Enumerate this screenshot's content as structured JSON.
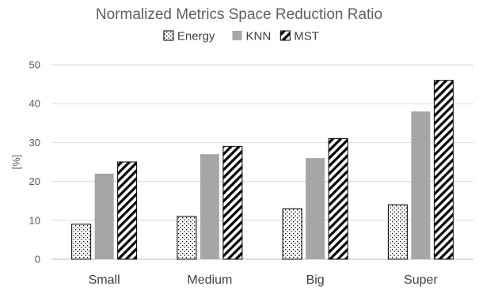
{
  "chart_data": {
    "type": "bar",
    "title": "Normalized Metrics Space Reduction Ratio",
    "xlabel": "",
    "ylabel": "[%]",
    "ylim": [
      0,
      50
    ],
    "yticks": [
      0,
      10,
      20,
      30,
      40,
      50
    ],
    "grid": true,
    "legend_position": "top",
    "categories": [
      "Small",
      "Medium",
      "Big",
      "Super"
    ],
    "series": [
      {
        "name": "Energy",
        "values": [
          9,
          11,
          13,
          14
        ],
        "pattern": "dotted-grid",
        "color": "#000000"
      },
      {
        "name": "KNN",
        "values": [
          22,
          27,
          26,
          38
        ],
        "pattern": "solid",
        "color": "#a6a6a6"
      },
      {
        "name": "MST",
        "values": [
          25,
          29,
          31,
          46
        ],
        "pattern": "diagonal-stripes",
        "color": "#000000"
      }
    ]
  }
}
